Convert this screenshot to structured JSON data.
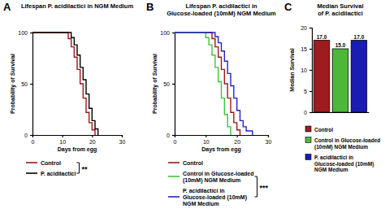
{
  "chart_data": [
    {
      "type": "line",
      "panel": "A",
      "title": [
        "Lifespan P. acidilactici in NGM Medium"
      ],
      "x_label": "Days from egg",
      "y_label": "Probability of Survival",
      "xlim": [
        0,
        30
      ],
      "ylim": [
        0,
        100
      ],
      "xticks": [
        0,
        10,
        20,
        30
      ],
      "yticks": [
        0,
        50,
        100
      ],
      "line_style": "step",
      "legend": "bottom",
      "series": [
        {
          "name": "Control",
          "color": "#a3161b",
          "x": [
            0,
            11,
            12,
            13,
            14,
            15,
            16,
            17,
            18,
            19,
            20,
            21
          ],
          "values": [
            100,
            100,
            94,
            86,
            76,
            64,
            50,
            36,
            22,
            12,
            5,
            0
          ]
        },
        {
          "name": "P. acidilactici",
          "color": "#000000",
          "x": [
            0,
            12,
            13,
            14,
            15,
            16,
            17,
            18,
            19,
            20,
            21,
            22
          ],
          "values": [
            100,
            100,
            95,
            88,
            78,
            66,
            54,
            40,
            26,
            14,
            6,
            0
          ]
        }
      ],
      "annotations": [
        {
          "text": "**",
          "series": [
            0,
            1
          ]
        }
      ]
    },
    {
      "type": "line",
      "panel": "B",
      "title": [
        "Lifespan P. acidilactici in",
        "Glucose-loaded  (10mM) NGM Medium"
      ],
      "x_label": "Days from egg",
      "y_label": "Probability of Survival",
      "xlim": [
        0,
        30
      ],
      "ylim": [
        0,
        100
      ],
      "xticks": [
        0,
        10,
        20,
        30
      ],
      "yticks": [
        0,
        50,
        100
      ],
      "line_style": "step",
      "legend": "bottom",
      "series": [
        {
          "name": "Control",
          "color": "#a3161b",
          "x": [
            0,
            11,
            12,
            13,
            14,
            15,
            16,
            17,
            18,
            19,
            20,
            21
          ],
          "values": [
            100,
            100,
            94,
            86,
            76,
            64,
            50,
            36,
            22,
            12,
            5,
            0
          ]
        },
        {
          "name": "Control in Glucose-loaded (10mM) NGM Medium",
          "color": "#3fc43a",
          "x": [
            0,
            9,
            10,
            11,
            12,
            13,
            14,
            15,
            16,
            17,
            18
          ],
          "values": [
            100,
            100,
            95,
            88,
            78,
            66,
            52,
            36,
            20,
            8,
            0
          ]
        },
        {
          "name": "P. acidilactici in Glucose-loaded (10mM) NGM Medium",
          "color": "#2323c8",
          "x": [
            0,
            12,
            13,
            14,
            15,
            16,
            17,
            18,
            19,
            20,
            21,
            22,
            23,
            25
          ],
          "values": [
            100,
            100,
            96,
            90,
            82,
            72,
            60,
            48,
            36,
            24,
            14,
            8,
            4,
            0
          ]
        }
      ],
      "annotations": [
        {
          "text": "***",
          "series": [
            1,
            2
          ]
        }
      ]
    },
    {
      "type": "bar",
      "panel": "C",
      "title": [
        "Median Survival",
        "of P. acidilactici"
      ],
      "y_label": "Median Survival",
      "categories": [
        null,
        null,
        null
      ],
      "values": [
        17,
        15,
        17
      ],
      "value_labels": [
        "17.0",
        "15.0",
        "17.0"
      ],
      "series_names": [
        "Control",
        "Control in Glucose-loaded (10mM) NGM Medium",
        "P. acidilactici in Glucose-loaded (10mM) NGM Medium"
      ],
      "colors": [
        "#9e1b1f",
        "#4cb83a",
        "#1c1cb4"
      ],
      "ylim": [
        0,
        20
      ],
      "yticks": [
        0,
        5,
        10,
        15,
        20
      ],
      "data_labels": true,
      "tick_labels": "y",
      "legend": "bottom"
    }
  ]
}
